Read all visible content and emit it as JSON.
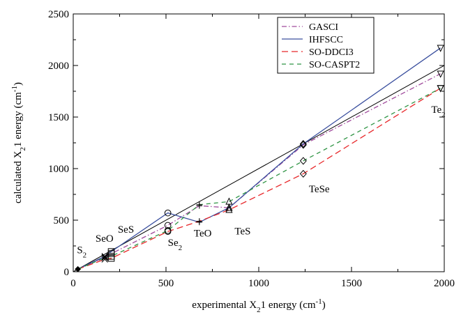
{
  "chart_data": {
    "type": "line",
    "xlim": [
      0,
      2000
    ],
    "ylim": [
      0,
      2500
    ],
    "xticks": [
      0,
      500,
      1000,
      1500,
      2000
    ],
    "yticks": [
      0,
      500,
      1000,
      1500,
      2000,
      2500
    ],
    "xlabel": {
      "pre": "experimental X",
      "sub": "2",
      "post": "1 energy (cm",
      "sup": "-1",
      "end": ")"
    },
    "ylabel": {
      "pre": "calculated X",
      "sub": "2",
      "post": "1 energy (cm",
      "sup": "-1",
      "end": ")"
    },
    "grid": false,
    "legend_position": "top-right",
    "reference_line": {
      "x": [
        0,
        2000
      ],
      "y": [
        0,
        2000
      ],
      "color": "#000000"
    },
    "molecules": [
      "S2",
      "SeS",
      "SeO",
      "Se2",
      "TeO",
      "TeS",
      "TeSe",
      "Te2"
    ],
    "x": [
      25,
      170,
      205,
      510,
      680,
      840,
      1240,
      1980
    ],
    "markers": [
      {
        "shape": "circle",
        "at": 510
      },
      {
        "shape": "cross",
        "at": 170
      },
      {
        "shape": "square",
        "at": 205
      },
      {
        "shape": "plus",
        "at": 680
      },
      {
        "shape": "triangle-up",
        "at": 840
      },
      {
        "shape": "diamond",
        "at": 1240
      },
      {
        "shape": "triangle-down",
        "at": 1980
      }
    ],
    "series": [
      {
        "name": "GASCI",
        "color": "#a04a9c",
        "dash": "7,3,1.5,3",
        "y": [
          25,
          140,
          175,
          450,
          640,
          620,
          1230,
          1920
        ]
      },
      {
        "name": "IHFSCC",
        "color": "#3a4f9e",
        "dash": "",
        "y": [
          25,
          150,
          195,
          570,
          480,
          620,
          1240,
          2170
        ]
      },
      {
        "name": "SO-DDCI3",
        "color": "#e8272a",
        "dash": "9,5",
        "y": [
          25,
          120,
          130,
          390,
          490,
          600,
          950,
          1780
        ]
      },
      {
        "name": "SO-CASPT2",
        "color": "#2f9444",
        "dash": "6,5",
        "y": [
          25,
          135,
          150,
          400,
          650,
          680,
          1075,
          1780
        ]
      }
    ],
    "annotations": [
      {
        "name": "s2",
        "pre": "S",
        "sub": "2",
        "x": 20,
        "y": 180
      },
      {
        "name": "seo",
        "pre": "SeO",
        "sub": "",
        "x": 120,
        "y": 290
      },
      {
        "name": "ses",
        "pre": "SeS",
        "sub": "",
        "x": 240,
        "y": 380
      },
      {
        "name": "se2",
        "pre": "Se",
        "sub": "2",
        "x": 510,
        "y": 250
      },
      {
        "name": "teo",
        "pre": "TeO",
        "sub": "",
        "x": 650,
        "y": 340
      },
      {
        "name": "tes",
        "pre": "TeS",
        "sub": "",
        "x": 870,
        "y": 360
      },
      {
        "name": "tese",
        "pre": "TeSe",
        "sub": "",
        "x": 1270,
        "y": 770
      },
      {
        "name": "te2",
        "pre": "Te",
        "sub": "2",
        "x": 1930,
        "y": 1540
      }
    ]
  }
}
